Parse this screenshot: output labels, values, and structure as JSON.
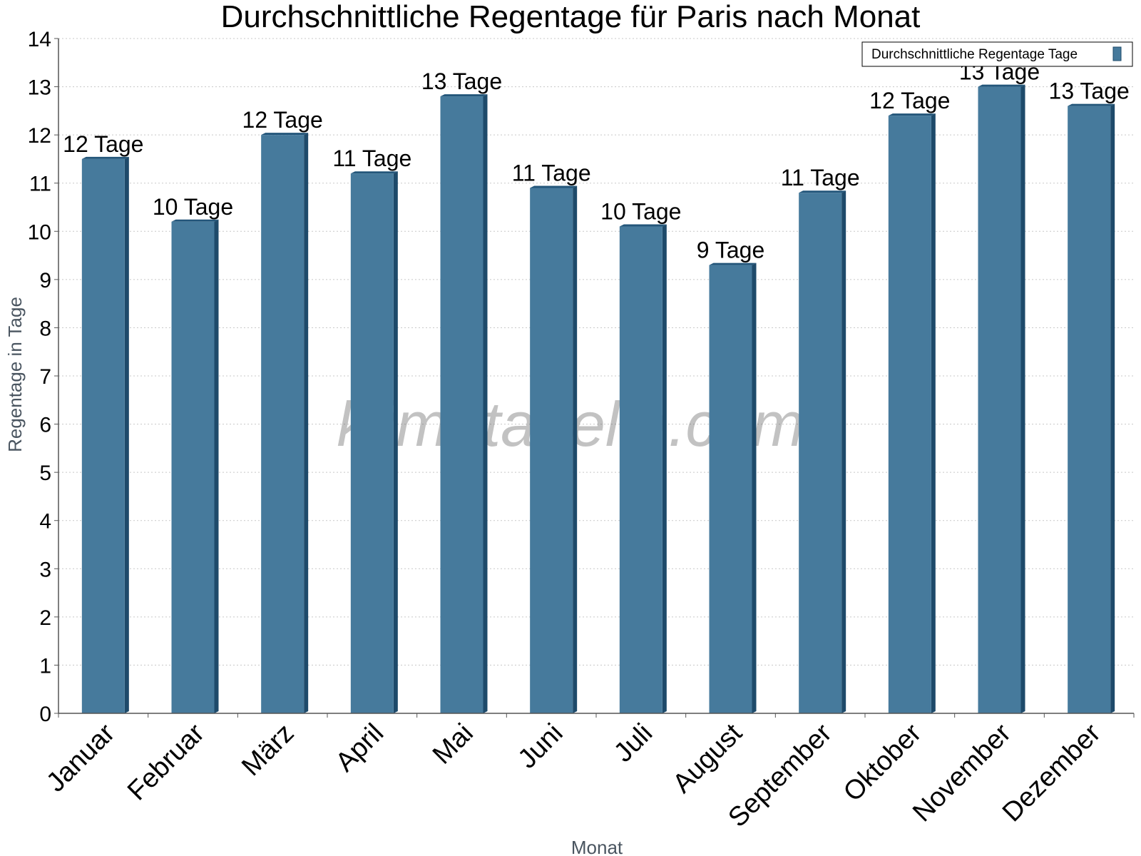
{
  "colors": {
    "bar_front": "#467a9c",
    "bar_side": "#1e4a6a",
    "bar_top": "#23567a",
    "grid": "#c8c8c8",
    "axis": "#555555"
  },
  "watermark": "klimatabelle.com",
  "chart_data": {
    "type": "bar",
    "title": "Durchschnittliche Regentage für Paris nach Monat",
    "xlabel": "Monat",
    "ylabel": "Regentage in Tage",
    "ylim": [
      0,
      14
    ],
    "yticks": [
      "0",
      "1",
      "2",
      "3",
      "4",
      "5",
      "6",
      "7",
      "8",
      "9",
      "10",
      "11",
      "12",
      "13",
      "14"
    ],
    "grid": true,
    "legend": {
      "position": "top-right",
      "entries": [
        "Durchschnittliche Regentage Tage"
      ]
    },
    "categories": [
      "Januar",
      "Februar",
      "März",
      "April",
      "Mai",
      "Juni",
      "Juli",
      "August",
      "September",
      "Oktober",
      "November",
      "Dezember"
    ],
    "series": [
      {
        "name": "Durchschnittliche Regentage Tage",
        "values": [
          11.5,
          10.2,
          12.0,
          11.2,
          12.8,
          10.9,
          10.1,
          9.3,
          10.8,
          12.4,
          13.0,
          12.6
        ],
        "labels": [
          "12 Tage",
          "10 Tage",
          "12 Tage",
          "11 Tage",
          "13 Tage",
          "11 Tage",
          "10 Tage",
          "9 Tage",
          "11 Tage",
          "12 Tage",
          "13 Tage",
          "13 Tage"
        ]
      }
    ]
  }
}
